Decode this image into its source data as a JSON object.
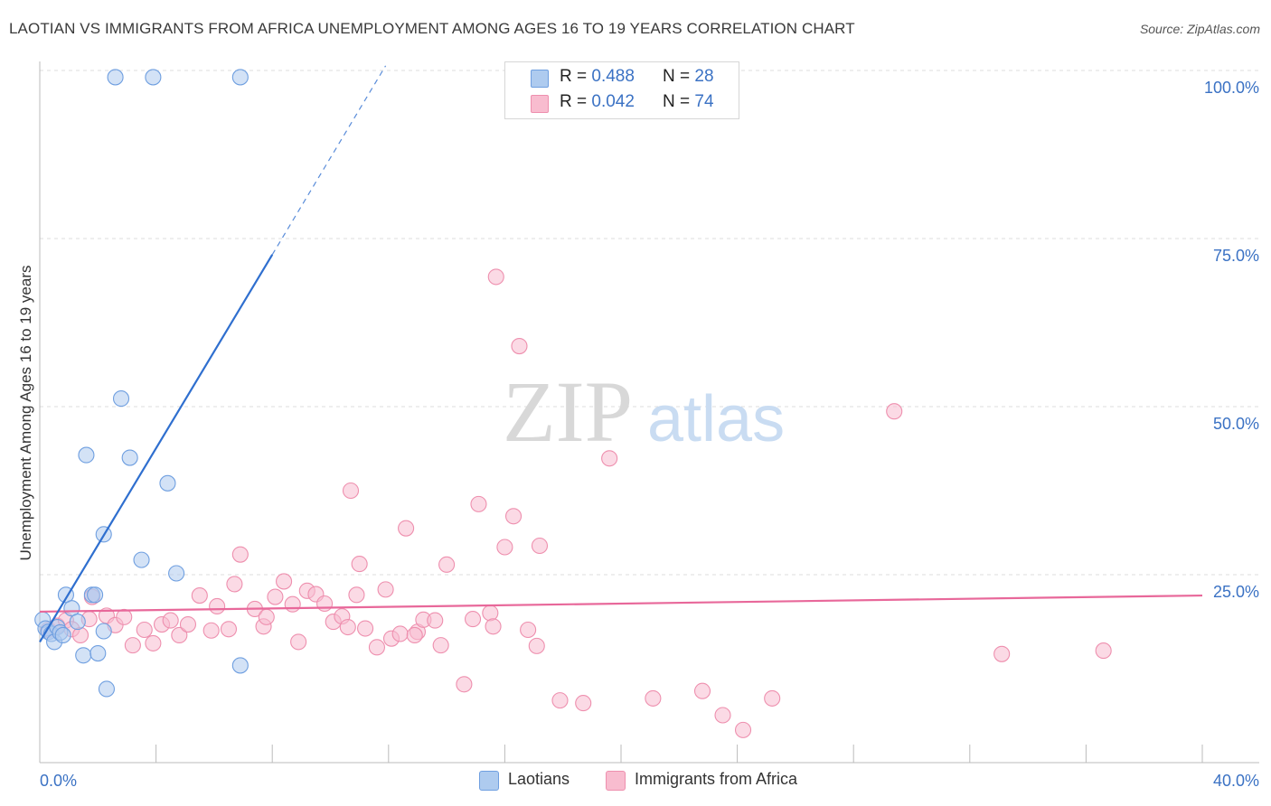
{
  "title": "LAOTIAN VS IMMIGRANTS FROM AFRICA UNEMPLOYMENT AMONG AGES 16 TO 19 YEARS CORRELATION CHART",
  "source": "Source: ZipAtlas.com",
  "watermark": {
    "zip": "ZIP",
    "atlas": "atlas"
  },
  "legend": {
    "rows": [
      {
        "r_label": "R =",
        "r_value": "0.488",
        "n_label": "N =",
        "n_value": "28"
      },
      {
        "r_label": "R =",
        "r_value": "0.042",
        "n_label": "N =",
        "n_value": "74"
      }
    ]
  },
  "bottom_legend": {
    "series1": "Laotians",
    "series2": "Immigrants from Africa"
  },
  "colors": {
    "blue_fill": "#aecbef",
    "blue_stroke": "#6f9fe0",
    "blue_line": "#2f6fcf",
    "pink_fill": "#f8bccf",
    "pink_stroke": "#ee8fae",
    "pink_line": "#e8689a",
    "axis_text": "#3b72c4",
    "grid": "#dddddd"
  },
  "chart_data": {
    "type": "scatter",
    "title": "LAOTIAN VS IMMIGRANTS FROM AFRICA UNEMPLOYMENT AMONG AGES 16 TO 19 YEARS CORRELATION CHART",
    "xlabel": "",
    "ylabel": "Unemployment Among Ages 16 to 19 years",
    "xlim": [
      0,
      40
    ],
    "ylim": [
      0,
      100
    ],
    "x_tick_labels": {
      "left": "0.0%",
      "right": "40.0%"
    },
    "y_ticks": [
      {
        "value": 25,
        "label": "25.0%"
      },
      {
        "value": 50,
        "label": "50.0%"
      },
      {
        "value": 75,
        "label": "75.0%"
      },
      {
        "value": 100,
        "label": "100.0%"
      }
    ],
    "series": [
      {
        "name": "Laotians",
        "r": 0.488,
        "n": 28,
        "trend": {
          "x0": 0.0,
          "y0": 15.0,
          "x1": 8.0,
          "y1": 72.6,
          "dash_to_x": 11.9,
          "dash_to_y": 100.7
        },
        "points": [
          [
            0.1,
            18.3
          ],
          [
            0.2,
            17.0
          ],
          [
            0.3,
            16.5
          ],
          [
            0.4,
            16.2
          ],
          [
            0.5,
            15.0
          ],
          [
            0.6,
            17.2
          ],
          [
            0.7,
            16.4
          ],
          [
            0.9,
            22.0
          ],
          [
            1.1,
            20.0
          ],
          [
            1.3,
            18.0
          ],
          [
            1.5,
            13.0
          ],
          [
            1.6,
            42.8
          ],
          [
            1.8,
            22.0
          ],
          [
            2.0,
            13.3
          ],
          [
            2.2,
            31.0
          ],
          [
            2.3,
            8.0
          ],
          [
            2.2,
            16.6
          ],
          [
            2.8,
            51.2
          ],
          [
            3.1,
            42.4
          ],
          [
            3.5,
            27.2
          ],
          [
            4.4,
            38.6
          ],
          [
            4.7,
            25.2
          ],
          [
            6.9,
            11.5
          ],
          [
            2.6,
            99.0
          ],
          [
            3.9,
            99.0
          ],
          [
            6.9,
            99.0
          ],
          [
            1.9,
            22.0
          ],
          [
            0.8,
            16.0
          ]
        ]
      },
      {
        "name": "Immigrants from Africa",
        "r": 0.042,
        "n": 74,
        "trend": {
          "x0": 0.0,
          "y0": 19.5,
          "x1": 40.0,
          "y1": 21.9
        },
        "points": [
          [
            0.3,
            16.8
          ],
          [
            0.6,
            17.4
          ],
          [
            0.9,
            18.2
          ],
          [
            1.1,
            16.9
          ],
          [
            1.4,
            16.0
          ],
          [
            1.7,
            18.4
          ],
          [
            1.8,
            21.7
          ],
          [
            2.3,
            18.9
          ],
          [
            2.6,
            17.5
          ],
          [
            2.9,
            18.7
          ],
          [
            3.2,
            14.5
          ],
          [
            3.6,
            16.8
          ],
          [
            3.9,
            14.8
          ],
          [
            4.2,
            17.6
          ],
          [
            4.5,
            18.2
          ],
          [
            4.8,
            16.0
          ],
          [
            5.1,
            17.6
          ],
          [
            5.5,
            21.9
          ],
          [
            5.9,
            16.7
          ],
          [
            6.1,
            20.3
          ],
          [
            6.5,
            16.9
          ],
          [
            6.7,
            23.6
          ],
          [
            6.9,
            28.0
          ],
          [
            7.4,
            19.9
          ],
          [
            7.7,
            17.3
          ],
          [
            7.8,
            18.7
          ],
          [
            8.1,
            21.7
          ],
          [
            8.4,
            24.0
          ],
          [
            8.7,
            20.6
          ],
          [
            8.9,
            15.0
          ],
          [
            9.2,
            22.6
          ],
          [
            9.5,
            22.1
          ],
          [
            9.8,
            20.7
          ],
          [
            10.1,
            18.0
          ],
          [
            10.4,
            18.8
          ],
          [
            10.7,
            37.5
          ],
          [
            10.9,
            22.0
          ],
          [
            11.0,
            26.6
          ],
          [
            11.2,
            17.0
          ],
          [
            11.6,
            14.2
          ],
          [
            11.9,
            22.8
          ],
          [
            12.1,
            15.5
          ],
          [
            12.4,
            16.2
          ],
          [
            12.6,
            31.9
          ],
          [
            13.0,
            16.5
          ],
          [
            13.2,
            18.3
          ],
          [
            13.6,
            18.2
          ],
          [
            13.8,
            14.5
          ],
          [
            14.0,
            26.5
          ],
          [
            14.6,
            8.7
          ],
          [
            15.1,
            35.5
          ],
          [
            15.5,
            19.3
          ],
          [
            15.6,
            17.3
          ],
          [
            15.7,
            69.3
          ],
          [
            16.0,
            29.1
          ],
          [
            16.3,
            33.7
          ],
          [
            16.5,
            59.0
          ],
          [
            16.8,
            16.8
          ],
          [
            17.1,
            14.4
          ],
          [
            17.2,
            29.3
          ],
          [
            17.9,
            6.3
          ],
          [
            18.7,
            5.9
          ],
          [
            19.6,
            42.3
          ],
          [
            21.1,
            6.6
          ],
          [
            22.8,
            7.7
          ],
          [
            23.5,
            4.1
          ],
          [
            24.2,
            1.9
          ],
          [
            25.2,
            6.6
          ],
          [
            29.4,
            49.3
          ],
          [
            33.1,
            13.2
          ],
          [
            36.6,
            13.7
          ],
          [
            14.9,
            18.4
          ],
          [
            10.6,
            17.2
          ],
          [
            12.9,
            16.0
          ]
        ]
      }
    ]
  }
}
